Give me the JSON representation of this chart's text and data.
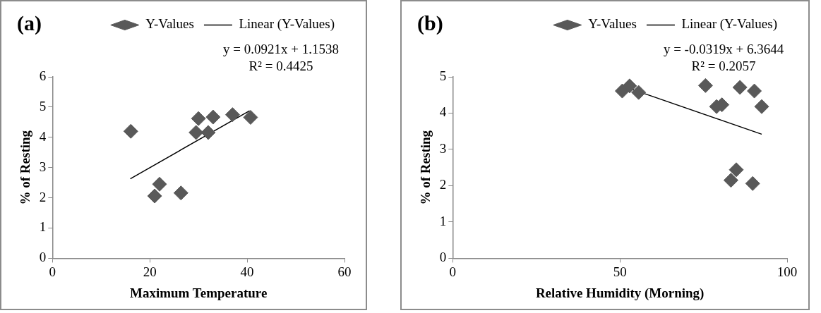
{
  "chart_data": [
    {
      "type": "scatter",
      "title": "(a)",
      "xlabel": "Maximum Temperature",
      "ylabel": "% of Resting",
      "xlim": [
        0,
        60
      ],
      "xticks": [
        0,
        20,
        40,
        60
      ],
      "ylim": [
        0,
        6
      ],
      "yticks": [
        0,
        1,
        2,
        3,
        4,
        5,
        6
      ],
      "grid": false,
      "legend": "top",
      "series": [
        {
          "name": "Y-Values",
          "color": "#595959",
          "marker": "diamond",
          "x": [
            16.1,
            22,
            21,
            26.4,
            30,
            29.5,
            32,
            33,
            37,
            40.7
          ],
          "values": [
            4.2,
            2.45,
            2.06,
            2.16,
            4.62,
            4.16,
            4.16,
            4.67,
            4.75,
            4.66
          ]
        },
        {
          "name": "Linear (Y-Values)",
          "type": "line",
          "color": "#000000",
          "marker": "none",
          "x": [
            16,
            40.5
          ],
          "values": [
            2.63,
            4.88
          ]
        }
      ],
      "annotations": [
        "y = 0.0921x + 1.1538",
        "R² = 0.4425"
      ]
    },
    {
      "type": "scatter",
      "title": "(b)",
      "xlabel": "Relative Humidity (Morning)",
      "ylabel": "% of Resting",
      "xlim": [
        0,
        100
      ],
      "xticks": [
        0,
        50,
        100
      ],
      "ylim": [
        0,
        5
      ],
      "yticks": [
        0,
        1,
        2,
        3,
        4,
        5
      ],
      "grid": false,
      "legend": "top",
      "series": [
        {
          "name": "Y-Values",
          "color": "#595959",
          "marker": "diamond",
          "x": [
            50.7,
            52.9,
            55.6,
            75.6,
            78.9,
            80.5,
            85.9,
            90.2,
            92.4,
            84.8,
            83.2,
            89.7
          ],
          "values": [
            4.61,
            4.75,
            4.57,
            4.76,
            4.18,
            4.23,
            4.71,
            4.61,
            4.18,
            2.44,
            2.15,
            2.06
          ]
        },
        {
          "name": "Linear (Y-Values)",
          "type": "line",
          "color": "#000000",
          "marker": "none",
          "x": [
            51,
            92.4
          ],
          "values": [
            4.74,
            3.42
          ]
        }
      ],
      "annotations": [
        "y = -0.0319x + 6.3644",
        "R² = 0.2057"
      ]
    }
  ]
}
